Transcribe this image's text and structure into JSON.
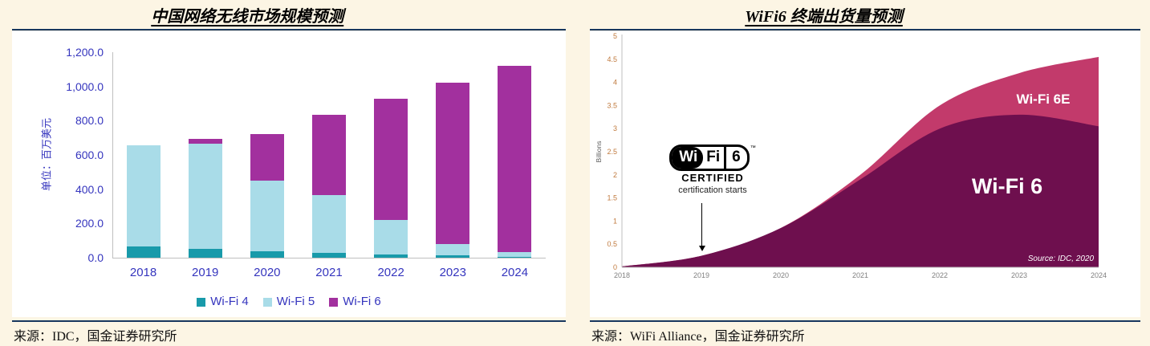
{
  "colors": {
    "page_background": "#FCF5E4",
    "rule_navy": "#17375E",
    "panel_background": "#FFFFFF",
    "left_axis_text": "#3535BE",
    "axis_line": "#BFBFBF",
    "right_ytick_text": "#C07A3E",
    "right_xtick_text": "#808080",
    "billions_text": "#595959",
    "white": "#FFFFFF"
  },
  "left_panel": {
    "title": "中国网络无线市场规模预测",
    "y_axis_title": "单位：百万美元",
    "source": "来源：IDC，国金证券研究所"
  },
  "right_panel": {
    "title": "WiFi6 终端出货量预测",
    "source": "来源：WiFi Alliance，国金证券研究所",
    "y_axis_title": "Billions",
    "badge": {
      "wi": "Wi",
      "fi": "Fi",
      "six": "6",
      "tm": "™",
      "certified": "CERTIFIED",
      "caption": "certification starts"
    },
    "area_labels": {
      "wifi6e": "Wi-Fi 6E",
      "wifi6": "Wi-Fi 6"
    },
    "source_note": "Source: IDC, 2020"
  },
  "chart_data": [
    {
      "type": "bar",
      "stacked": true,
      "title": "中国网络无线市场规模预测",
      "categories": [
        "2018",
        "2019",
        "2020",
        "2021",
        "2022",
        "2023",
        "2024"
      ],
      "series": [
        {
          "name": "Wi-Fi 4",
          "color": "#189AAA",
          "values": [
            65,
            50,
            38,
            28,
            20,
            12,
            6
          ]
        },
        {
          "name": "Wi-Fi 5",
          "color": "#A9DCE8",
          "values": [
            590,
            615,
            412,
            338,
            200,
            68,
            28
          ]
        },
        {
          "name": "Wi-Fi 6",
          "color": "#A2309E",
          "values": [
            0,
            30,
            270,
            468,
            710,
            940,
            1086
          ]
        }
      ],
      "xlabel": "",
      "ylabel": "单位：百万美元",
      "ylim": [
        0,
        1200
      ],
      "yticks": [
        "0.0",
        "200.0",
        "400.0",
        "600.0",
        "800.0",
        "1,000.0",
        "1,200.0"
      ],
      "grid": false,
      "legend_position": "bottom"
    },
    {
      "type": "area",
      "stacked": true,
      "title": "WiFi6 终端出货量预测",
      "x": [
        2018,
        2019,
        2020,
        2021,
        2022,
        2023,
        2024
      ],
      "series": [
        {
          "name": "Wi-Fi 6",
          "color": "#6E0F4E",
          "values": [
            0.02,
            0.25,
            0.85,
            1.9,
            3.0,
            3.3,
            3.05
          ]
        },
        {
          "name": "Wi-Fi 6E",
          "color": "#C23A6B",
          "values": [
            0,
            0,
            0,
            0.1,
            0.5,
            0.9,
            1.5
          ]
        }
      ],
      "xlabel": "",
      "ylabel": "Billions",
      "ylim": [
        0,
        5
      ],
      "yticks": [
        "0",
        "0.5",
        "1",
        "1.5",
        "2",
        "2.5",
        "3",
        "3.5",
        "4",
        "4.5",
        "5"
      ],
      "grid": false,
      "annotations": [
        "certification starts (arrow at 2019)",
        "Source: IDC, 2020"
      ]
    }
  ]
}
